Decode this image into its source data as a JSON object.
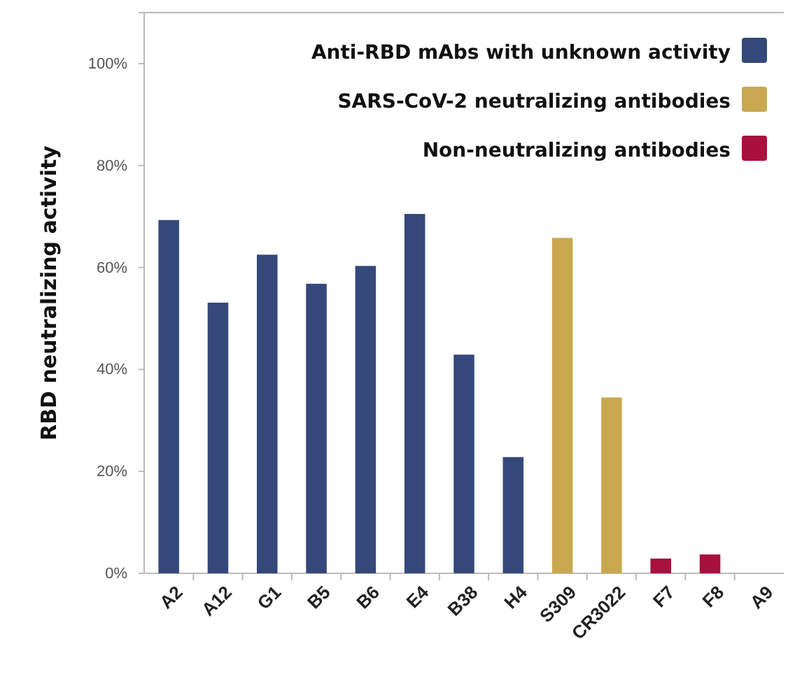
{
  "chart_data": {
    "type": "bar",
    "ylabel": "RBD neutralizing activity",
    "categories": [
      "A2",
      "A12",
      "G1",
      "B5",
      "B6",
      "E4",
      "B38",
      "H4",
      "S309",
      "CR3022",
      "F7",
      "F8",
      "A9"
    ],
    "series": [
      {
        "name": "Anti-RBD mAbs with unknown activity",
        "color": "#34497a",
        "values": [
          69.3,
          53.1,
          62.5,
          56.8,
          60.3,
          70.5,
          42.9,
          22.8,
          null,
          null,
          null,
          null,
          null
        ]
      },
      {
        "name": "SARS-CoV-2 neutralizing antibodies",
        "color": "#c9a84f",
        "values": [
          null,
          null,
          null,
          null,
          null,
          null,
          null,
          null,
          65.8,
          34.5,
          null,
          null,
          null
        ]
      },
      {
        "name": "Non-neutralizing antibodies",
        "color": "#a8103e",
        "values": [
          null,
          null,
          null,
          null,
          null,
          null,
          null,
          null,
          null,
          null,
          2.9,
          3.7,
          0
        ]
      }
    ],
    "ylim": [
      0,
      110
    ],
    "yticks": [
      {
        "value": 0,
        "label": "0%"
      },
      {
        "value": 20,
        "label": "20%"
      },
      {
        "value": 40,
        "label": "40%"
      },
      {
        "value": 60,
        "label": "60%"
      },
      {
        "value": 80,
        "label": "80%"
      },
      {
        "value": 100,
        "label": "100%"
      }
    ],
    "grid": false,
    "legend": "top right"
  }
}
